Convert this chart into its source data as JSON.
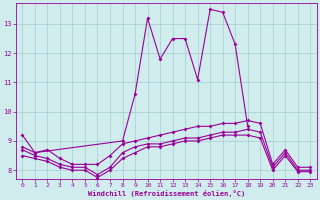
{
  "x": [
    0,
    1,
    2,
    3,
    4,
    5,
    6,
    7,
    8,
    9,
    10,
    11,
    12,
    13,
    14,
    15,
    16,
    17,
    18,
    19,
    20,
    21,
    22,
    23
  ],
  "line1": [
    9.2,
    8.6,
    null,
    null,
    null,
    null,
    null,
    null,
    9.0,
    10.6,
    13.2,
    11.8,
    12.5,
    12.5,
    11.1,
    13.5,
    13.4,
    12.3,
    9.5,
    null,
    null,
    null,
    null,
    null
  ],
  "line2": [
    null,
    null,
    null,
    null,
    null,
    null,
    null,
    null,
    null,
    null,
    null,
    null,
    null,
    null,
    null,
    null,
    null,
    12.5,
    9.7,
    null,
    null,
    null,
    null,
    null
  ],
  "line3": [
    8.8,
    8.6,
    8.7,
    8.4,
    8.2,
    8.2,
    8.2,
    8.5,
    8.9,
    9.0,
    9.1,
    9.2,
    9.3,
    9.4,
    9.5,
    9.5,
    9.6,
    9.6,
    9.7,
    9.6,
    8.2,
    8.7,
    8.1,
    8.1
  ],
  "line4": [
    8.7,
    8.5,
    8.4,
    8.2,
    8.1,
    8.1,
    7.85,
    8.1,
    8.6,
    8.8,
    8.9,
    8.9,
    9.0,
    9.1,
    9.1,
    9.2,
    9.3,
    9.3,
    9.4,
    9.3,
    8.1,
    8.6,
    8.0,
    8.0
  ],
  "line5": [
    8.5,
    8.4,
    8.3,
    8.1,
    8.0,
    8.0,
    7.75,
    8.0,
    8.4,
    8.6,
    8.8,
    8.8,
    8.9,
    9.0,
    9.0,
    9.1,
    9.2,
    9.2,
    9.2,
    9.1,
    8.0,
    8.5,
    7.95,
    7.95
  ],
  "line_color": "#990099",
  "bg_color": "#d0ecec",
  "grid_color": "#aad4d4",
  "xlabel": "Windchill (Refroidissement éolien,°C)",
  "xlim": [
    -0.5,
    23.5
  ],
  "ylim": [
    7.7,
    13.7
  ],
  "yticks": [
    8,
    9,
    10,
    11,
    12,
    13
  ],
  "xticks": [
    0,
    1,
    2,
    3,
    4,
    5,
    6,
    7,
    8,
    9,
    10,
    11,
    12,
    13,
    14,
    15,
    16,
    17,
    18,
    19,
    20,
    21,
    22,
    23
  ]
}
